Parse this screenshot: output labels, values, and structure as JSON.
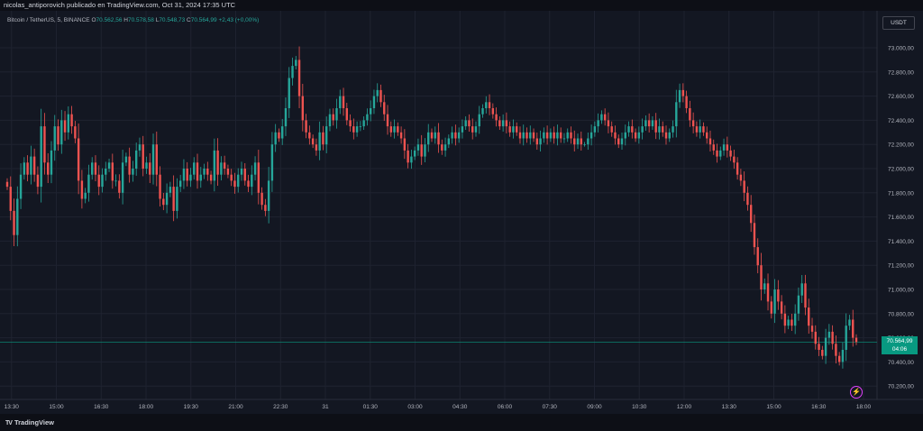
{
  "header": {
    "text": "nicolas_antiporovich publicado en TradingView.com, Oct 31, 2024 17:35 UTC"
  },
  "symbol": {
    "name": "Bitcoin / TetherUS, 5, BINANCE",
    "o_label": "O",
    "o": "70.562,56",
    "h_label": "H",
    "h": "70.578,58",
    "l_label": "L",
    "l": "70.548,73",
    "c_label": "C",
    "c": "70.564,99",
    "change": "+2,43 (+0,00%)"
  },
  "currency": "USDT",
  "last_price": {
    "value": "70.564,99",
    "countdown": "04:06"
  },
  "footer": {
    "logo_mark": "TV",
    "logo_text": "TradingView"
  },
  "colors": {
    "up": "#26a69a",
    "down": "#ef5350",
    "background": "#131722",
    "price_line": "#089981"
  },
  "icons": {
    "alert": "lightning-icon"
  },
  "chart_data": {
    "type": "candlestick",
    "interval": "5",
    "ylim": [
      70100,
      73200
    ],
    "y_ticks": [
      73000,
      72800,
      72600,
      72400,
      72200,
      72000,
      71800,
      71600,
      71400,
      71200,
      71000,
      70800,
      70600,
      70400,
      70200
    ],
    "y_tick_labels": [
      "73.000,00",
      "72.800,00",
      "72.600,00",
      "72.400,00",
      "72.200,00",
      "72.000,00",
      "71.800,00",
      "71.600,00",
      "71.400,00",
      "71.200,00",
      "71.000,00",
      "70.800,00",
      "70.600,00",
      "70.400,00",
      "70.200,00"
    ],
    "x_ticks": [
      "13:30",
      "15:00",
      "16:30",
      "18:00",
      "19:30",
      "21:00",
      "22:30",
      "31",
      "01:30",
      "03:00",
      "04:30",
      "06:00",
      "07:30",
      "09:00",
      "10:30",
      "12:00",
      "13:30",
      "15:00",
      "16:30",
      "18:00"
    ],
    "x_tick_times": [
      0,
      90,
      180,
      270,
      360,
      450,
      540,
      630,
      720,
      810,
      900,
      990,
      1080,
      1170,
      1260,
      1350,
      1440,
      1530,
      1620,
      1710
    ],
    "time_start": -5,
    "time_end": 1710,
    "price_line": 70565,
    "closes": [
      71850,
      71650,
      71450,
      71750,
      71950,
      72050,
      71950,
      72100,
      71950,
      71850,
      72350,
      72050,
      71950,
      72150,
      72350,
      72200,
      72400,
      72300,
      72450,
      72350,
      72250,
      71900,
      71750,
      71800,
      71950,
      72050,
      71950,
      71850,
      71950,
      72000,
      72050,
      71900,
      71900,
      71800,
      72050,
      72100,
      71950,
      72000,
      72150,
      72200,
      72000,
      72050,
      71950,
      72200,
      71950,
      71750,
      71700,
      71800,
      71850,
      71650,
      71850,
      71900,
      72000,
      71900,
      71950,
      72050,
      71900,
      71950,
      72000,
      71950,
      71900,
      72150,
      71950,
      72050,
      72000,
      71950,
      71900,
      71850,
      71950,
      72000,
      71900,
      71850,
      71950,
      72050,
      71800,
      71700,
      71650,
      71900,
      72200,
      72300,
      72250,
      72350,
      72500,
      72750,
      72850,
      72900,
      72600,
      72400,
      72300,
      72250,
      72200,
      72150,
      72300,
      72200,
      72350,
      72450,
      72400,
      72500,
      72600,
      72500,
      72400,
      72350,
      72300,
      72350,
      72350,
      72400,
      72450,
      72500,
      72600,
      72650,
      72550,
      72450,
      72350,
      72300,
      72350,
      72300,
      72250,
      72150,
      72050,
      72100,
      72150,
      72200,
      72100,
      72200,
      72300,
      72250,
      72300,
      72200,
      72150,
      72200,
      72250,
      72300,
      72250,
      72300,
      72350,
      72400,
      72350,
      72300,
      72350,
      72450,
      72500,
      72550,
      72500,
      72450,
      72400,
      72350,
      72400,
      72350,
      72300,
      72350,
      72300,
      72250,
      72300,
      72250,
      72300,
      72250,
      72200,
      72250,
      72300,
      72250,
      72300,
      72250,
      72300,
      72250,
      72250,
      72300,
      72250,
      72200,
      72250,
      72200,
      72200,
      72250,
      72300,
      72350,
      72400,
      72450,
      72400,
      72350,
      72300,
      72250,
      72200,
      72250,
      72300,
      72350,
      72300,
      72250,
      72300,
      72350,
      72400,
      72350,
      72400,
      72300,
      72350,
      72300,
      72250,
      72300,
      72350,
      72550,
      72650,
      72600,
      72500,
      72400,
      72350,
      72300,
      72350,
      72300,
      72250,
      72200,
      72150,
      72100,
      72150,
      72200,
      72150,
      72100,
      72050,
      71950,
      71900,
      71800,
      71700,
      71550,
      71350,
      71200,
      71000,
      71050,
      70900,
      70800,
      71000,
      70900,
      70800,
      70700,
      70750,
      70700,
      70800,
      70950,
      71050,
      70850,
      70700,
      70650,
      70550,
      70500,
      70450,
      70600,
      70650,
      70550,
      70450,
      70400,
      70500,
      70700,
      70750,
      70600,
      70565
    ]
  }
}
